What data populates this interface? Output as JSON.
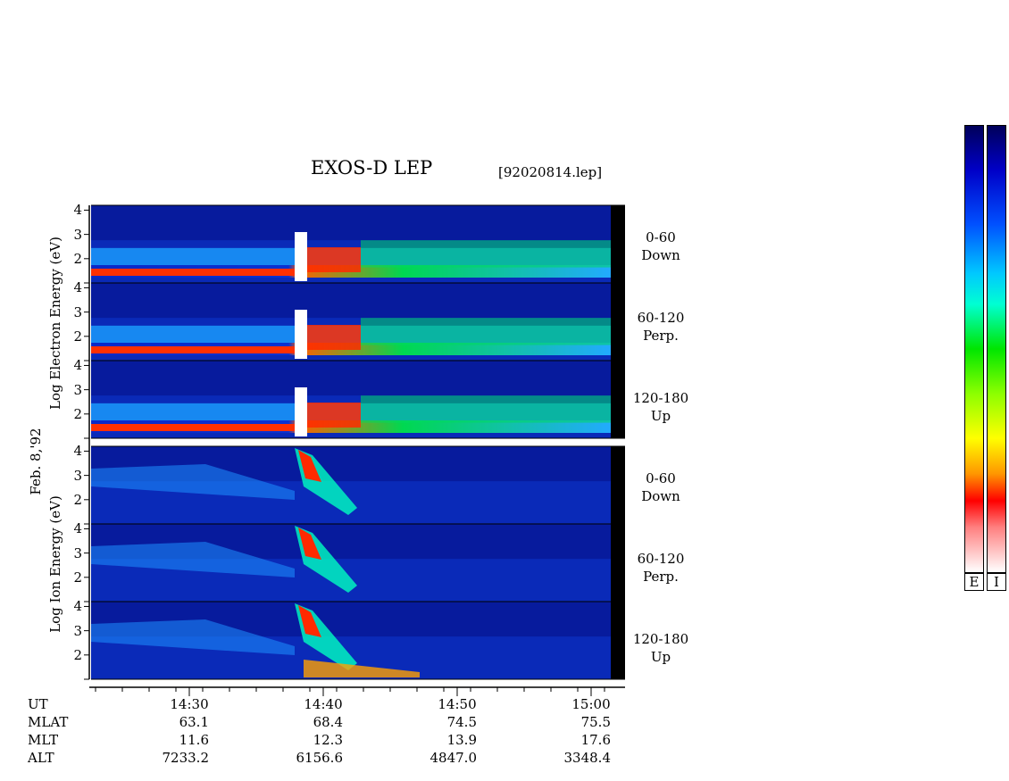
{
  "header": {
    "title": "EXOS-D LEP",
    "file": "[92020814.lep]"
  },
  "side_label": "Feb. 8,'92",
  "electron_axis": {
    "line1": "Log Electron Energy (eV)"
  },
  "ion_axis": {
    "line1": "Log Ion Energy (eV)"
  },
  "panels": [
    {
      "species": "electron",
      "range": "0-60",
      "direction": "Down"
    },
    {
      "species": "electron",
      "range": "60-120",
      "direction": "Perp."
    },
    {
      "species": "electron",
      "range": "120-180",
      "direction": "Up"
    },
    {
      "species": "ion",
      "range": "0-60",
      "direction": "Down"
    },
    {
      "species": "ion",
      "range": "60-120",
      "direction": "Perp."
    },
    {
      "species": "ion",
      "range": "120-180",
      "direction": "Up"
    }
  ],
  "colorbars": [
    "E",
    "I"
  ],
  "colors": {
    "low": "#00005a",
    "mid": "#00e600",
    "high": "#ff0000",
    "max": "#ffffff"
  },
  "chart_data": {
    "type": "heatmap",
    "title": "EXOS-D LEP",
    "y_ticks": [
      "4",
      "3",
      "2"
    ],
    "ylim": [
      1,
      4.2
    ],
    "x_ticks": [
      "14:30",
      "14:40",
      "14:50",
      "15:00"
    ],
    "ephemeris": [
      {
        "name": "UT",
        "values": [
          "14:30",
          "14:40",
          "14:50",
          "15:00"
        ]
      },
      {
        "name": "MLAT",
        "values": [
          "63.1",
          "68.4",
          "74.5",
          "75.5"
        ]
      },
      {
        "name": "MLT",
        "values": [
          "11.6",
          "12.3",
          "13.9",
          "17.6"
        ]
      },
      {
        "name": "ALT",
        "values": [
          "7233.2",
          "6156.6",
          "4847.0",
          "3348.4"
        ]
      }
    ]
  }
}
